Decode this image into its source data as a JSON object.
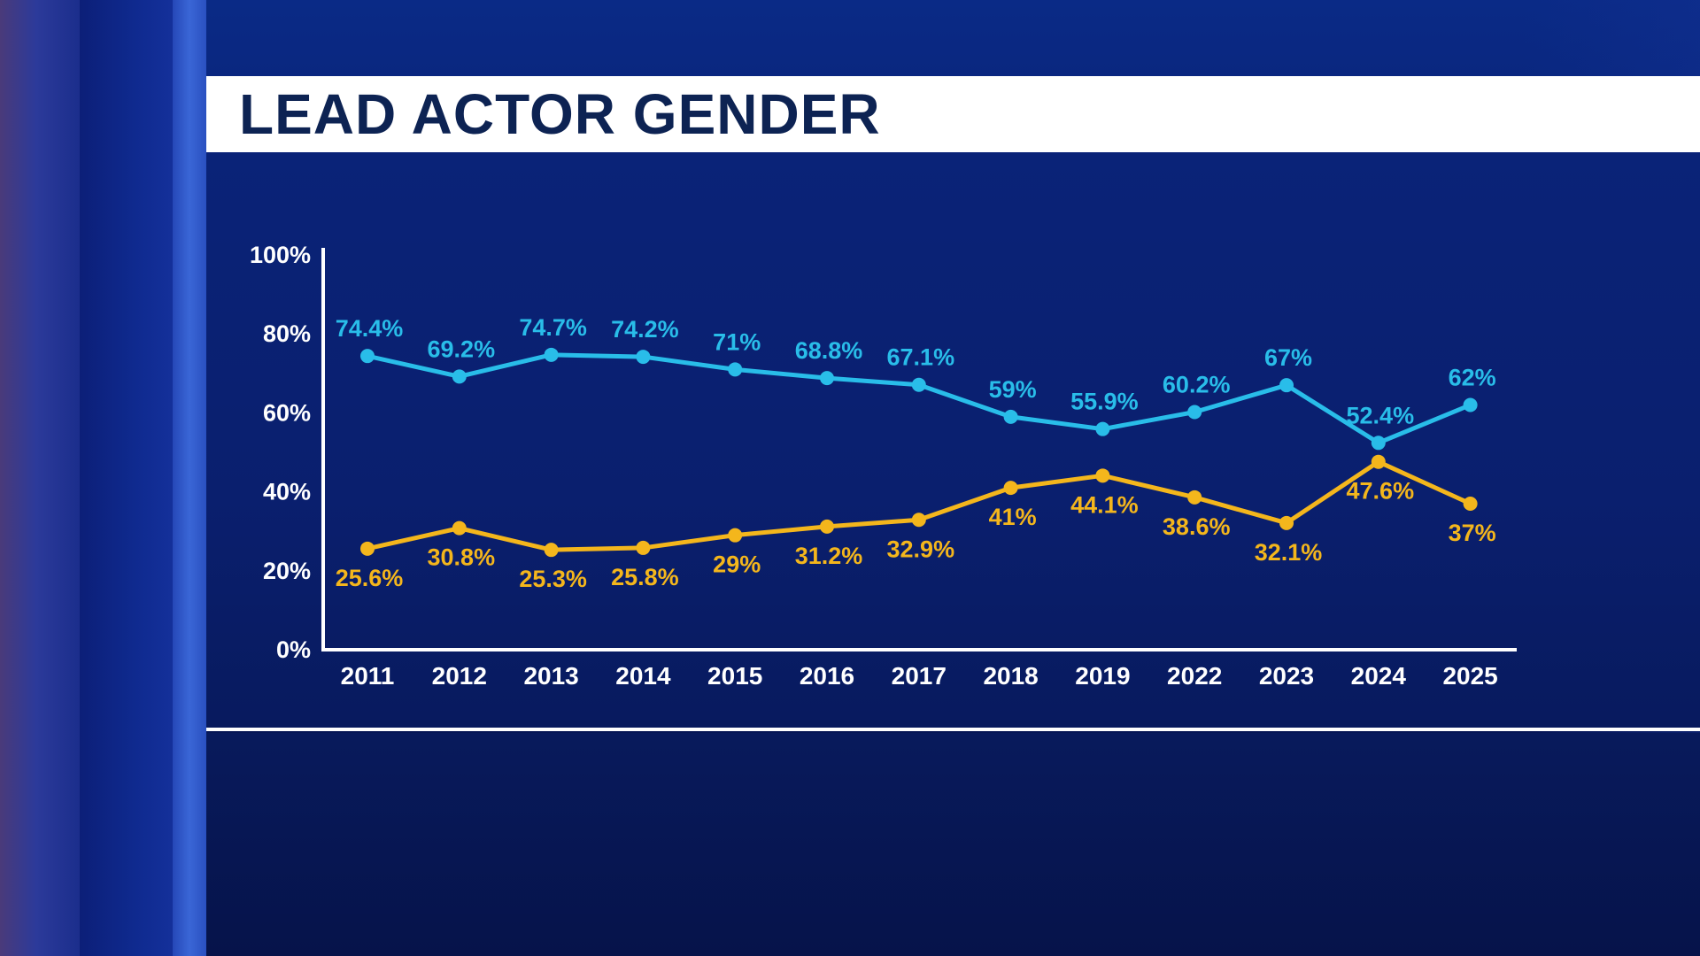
{
  "title": "LEAD ACTOR GENDER",
  "colors": {
    "series_male": "#29bde9",
    "series_female": "#f4b61c",
    "title_text": "#0d2353",
    "axis": "#ffffff"
  },
  "chart_data": {
    "type": "line",
    "title": "LEAD ACTOR GENDER",
    "x": [
      "2011",
      "2012",
      "2013",
      "2014",
      "2015",
      "2016",
      "2017",
      "2018",
      "2019",
      "2022",
      "2023",
      "2024",
      "2025"
    ],
    "y_ticks": [
      "0%",
      "20%",
      "40%",
      "60%",
      "80%",
      "100%"
    ],
    "ylim": [
      0,
      100
    ],
    "grid": false,
    "legend": "none",
    "series": [
      {
        "color": "#29bde9",
        "values": [
          74.4,
          69.2,
          74.7,
          74.2,
          71,
          68.8,
          67.1,
          59,
          55.9,
          60.2,
          67,
          52.4,
          62
        ],
        "labels": [
          "74.4%",
          "69.2%",
          "74.7%",
          "74.2%",
          "71%",
          "68.8%",
          "67.1%",
          "59%",
          "55.9%",
          "60.2%",
          "67%",
          "52.4%",
          "62%"
        ]
      },
      {
        "color": "#f4b61c",
        "values": [
          25.6,
          30.8,
          25.3,
          25.8,
          29,
          31.2,
          32.9,
          41,
          44.1,
          38.6,
          32.1,
          47.6,
          37
        ],
        "labels": [
          "25.6%",
          "30.8%",
          "25.3%",
          "25.8%",
          "29%",
          "31.2%",
          "32.9%",
          "41%",
          "44.1%",
          "38.6%",
          "32.1%",
          "47.6%",
          "37%"
        ]
      }
    ]
  }
}
